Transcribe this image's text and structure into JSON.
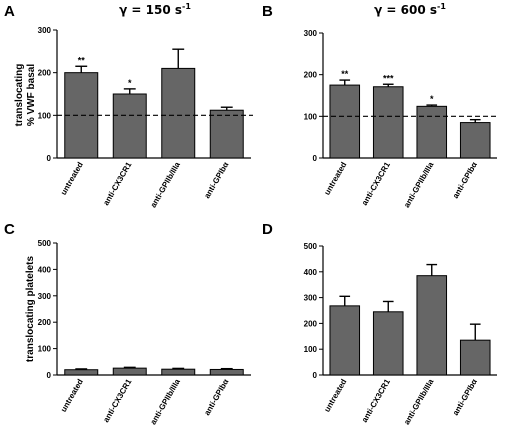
{
  "chart_data": [
    {
      "type": "bar",
      "panel": "A",
      "title": "γ = 150 s",
      "title_sup": "-1",
      "ylabel": [
        "translocating",
        "% VWF basal"
      ],
      "ylim": [
        0,
        300
      ],
      "yticks": [
        0,
        100,
        200,
        300
      ],
      "reference_line": 100,
      "categories": [
        "untreated",
        "anti-CX3CR1",
        "anti-GPIIb/IIIa",
        "anti-GPIbα"
      ],
      "values": [
        200,
        150,
        210,
        112
      ],
      "errors": [
        15,
        12,
        45,
        7
      ],
      "significance": [
        "**",
        "*",
        "",
        ""
      ]
    },
    {
      "type": "bar",
      "panel": "B",
      "title": "γ = 600 s",
      "title_sup": "-1",
      "ylabel": [],
      "ylim": [
        0,
        300
      ],
      "yticks": [
        0,
        100,
        200,
        300
      ],
      "reference_line": 100,
      "categories": [
        "untreated",
        "anti-CX3CR1",
        "anti-GPIIb/IIIa",
        "anti-GPIbα"
      ],
      "values": [
        175,
        171,
        124,
        85
      ],
      "errors": [
        12,
        6,
        3,
        7
      ],
      "significance": [
        "**",
        "***",
        "*",
        ""
      ]
    },
    {
      "type": "bar",
      "panel": "C",
      "title": "",
      "title_sup": "",
      "ylabel": [
        "translocating platelets"
      ],
      "ylim": [
        0,
        500
      ],
      "yticks": [
        0,
        100,
        200,
        300,
        400,
        500
      ],
      "reference_line": null,
      "categories": [
        "untreated",
        "anti-CX3CR1",
        "anti-GPIIb/IIIa",
        "anti-GPIbα"
      ],
      "values": [
        20,
        26,
        22,
        21
      ],
      "errors": [
        3,
        3,
        3,
        3
      ],
      "significance": [
        "",
        "",
        "",
        ""
      ]
    },
    {
      "type": "bar",
      "panel": "D",
      "title": "",
      "title_sup": "",
      "ylabel": [],
      "ylim": [
        0,
        500
      ],
      "yticks": [
        0,
        100,
        200,
        300,
        400,
        500
      ],
      "reference_line": null,
      "categories": [
        "untreated",
        "anti-CX3CR1",
        "anti-GPIIb/IIIa",
        "anti-GPIbα"
      ],
      "values": [
        268,
        245,
        385,
        135
      ],
      "errors": [
        37,
        40,
        43,
        62
      ],
      "significance": [
        "",
        "",
        "",
        ""
      ]
    }
  ],
  "colors": {
    "bar": "#666666",
    "axis": "#000000",
    "refline": "#000000"
  }
}
